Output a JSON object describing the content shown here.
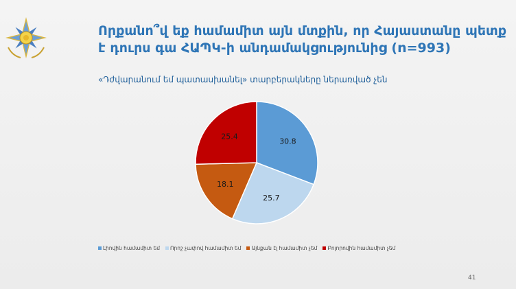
{
  "slide": {
    "title": "Որքանո՞վ եք համամիտ այն մտքին, որ Հայաստանը պետք է դուրս գա ՀԱՊԿ-ի անդամակցությունից (n=993)",
    "subtitle": "«Դժվարանում եմ պատասխանել» տարբերակները ներառված չեն",
    "page_number": "41"
  },
  "chart_data": {
    "type": "pie",
    "start_angle_deg": 0,
    "direction": "clockwise",
    "slices": [
      {
        "label": "Լիովին համամիտ եմ",
        "value": 30.8,
        "color": "#5b9bd5",
        "text_color": "#1a1a1a"
      },
      {
        "label": "Որոշ չափով համամիտ եմ",
        "value": 25.7,
        "color": "#bdd7ee",
        "text_color": "#1a1a1a"
      },
      {
        "label": "Այնքան էլ համամիտ չեմ",
        "value": 18.1,
        "color": "#c55a11",
        "text_color": "#1a1a1a"
      },
      {
        "label": "Բոլորովին համամիտ չեմ",
        "value": 25.4,
        "color": "#c00000",
        "text_color": "#1a1a1a"
      }
    ]
  }
}
